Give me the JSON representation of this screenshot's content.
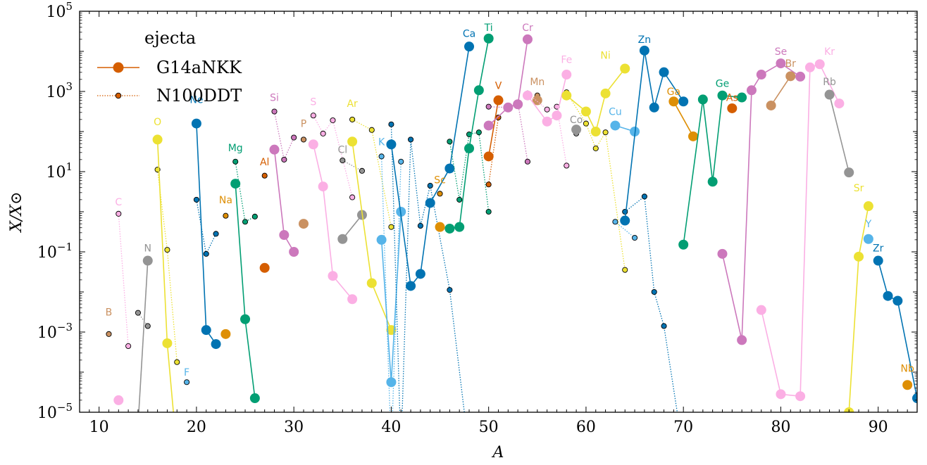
{
  "chart_data": {
    "type": "scatter",
    "xlabel": "A",
    "ylabel": "X/X⊙",
    "xlim": [
      8,
      94
    ],
    "ylim_log10": [
      -5,
      5
    ],
    "yscale": "log",
    "x_ticks": [
      10,
      20,
      30,
      40,
      50,
      60,
      70,
      80,
      90
    ],
    "y_ticks": [
      {
        "exp": -5,
        "base": "10",
        "sup": "−5"
      },
      {
        "exp": -3,
        "base": "10",
        "sup": "−3"
      },
      {
        "exp": -1,
        "base": "10",
        "sup": "−1"
      },
      {
        "exp": 1,
        "base": "10",
        "sup": "1"
      },
      {
        "exp": 3,
        "base": "10",
        "sup": "3"
      },
      {
        "exp": 5,
        "base": "10",
        "sup": "5"
      }
    ],
    "legend": {
      "title": "ejecta",
      "placement": "top-left",
      "entries": [
        {
          "label": "G14aNKK",
          "style": "solid-large"
        },
        {
          "label": "N100DDT",
          "style": "dotted-small"
        }
      ]
    },
    "elements": [
      {
        "symbol": "B",
        "color": "#ca9161",
        "label_at": [
          11,
          -2.5
        ],
        "N100DDT": [
          [
            11,
            -3.05
          ]
        ]
      },
      {
        "symbol": "C",
        "color": "#fbafe4",
        "label_at": [
          12,
          0.25
        ],
        "G14aNKK": [
          [
            12,
            -4.7
          ]
        ],
        "N100DDT": [
          [
            12,
            -0.05
          ],
          [
            13,
            -3.35
          ]
        ]
      },
      {
        "symbol": "N",
        "color": "#949494",
        "label_at": [
          15,
          -0.9
        ],
        "G14aNKK": [
          [
            14,
            -5.3
          ],
          [
            15,
            -1.22
          ]
        ],
        "N100DDT": [
          [
            14,
            -2.52
          ],
          [
            15,
            -2.85
          ]
        ]
      },
      {
        "symbol": "O",
        "color": "#ece133",
        "label_at": [
          16,
          2.25
        ],
        "G14aNKK": [
          [
            16,
            1.8
          ],
          [
            17,
            -3.28
          ],
          [
            18,
            -6.0
          ]
        ],
        "N100DDT": [
          [
            16,
            1.05
          ],
          [
            17,
            -0.95
          ],
          [
            18,
            -3.75
          ]
        ]
      },
      {
        "symbol": "F",
        "color": "#56b4e9",
        "label_at": [
          19,
          -4.0
        ],
        "N100DDT": [
          [
            19,
            -4.25
          ]
        ]
      },
      {
        "symbol": "Ne",
        "color": "#0173b2",
        "label_at": [
          20,
          2.8
        ],
        "G14aNKK": [
          [
            20,
            2.2
          ],
          [
            21,
            -2.95
          ],
          [
            22,
            -3.3
          ]
        ],
        "N100DDT": [
          [
            20,
            0.3
          ],
          [
            21,
            -1.05
          ],
          [
            22,
            -0.55
          ]
        ]
      },
      {
        "symbol": "Na",
        "color": "#de8f05",
        "label_at": [
          23,
          0.3
        ],
        "G14aNKK": [
          [
            23,
            -3.05
          ]
        ],
        "N100DDT": [
          [
            23,
            -0.1
          ]
        ]
      },
      {
        "symbol": "Mg",
        "color": "#029e73",
        "label_at": [
          24,
          1.6
        ],
        "G14aNKK": [
          [
            24,
            0.7
          ],
          [
            25,
            -2.68
          ],
          [
            26,
            -4.65
          ]
        ],
        "N100DDT": [
          [
            24,
            1.25
          ],
          [
            25,
            -0.25
          ],
          [
            26,
            -0.12
          ]
        ]
      },
      {
        "symbol": "Al",
        "color": "#d55e00",
        "label_at": [
          27,
          1.25
        ],
        "G14aNKK": [
          [
            27,
            -1.4
          ]
        ],
        "N100DDT": [
          [
            27,
            0.9
          ]
        ]
      },
      {
        "symbol": "Si",
        "color": "#cc78bc",
        "label_at": [
          28,
          2.85
        ],
        "G14aNKK": [
          [
            28,
            1.55
          ],
          [
            29,
            -0.58
          ],
          [
            30,
            -1.0
          ]
        ],
        "N100DDT": [
          [
            28,
            2.5
          ],
          [
            29,
            1.3
          ],
          [
            30,
            1.85
          ]
        ]
      },
      {
        "symbol": "P",
        "color": "#ca9161",
        "label_at": [
          31,
          2.2
        ],
        "G14aNKK": [
          [
            31,
            -0.3
          ]
        ],
        "N100DDT": [
          [
            31,
            1.8
          ]
        ]
      },
      {
        "symbol": "S",
        "color": "#fbafe4",
        "label_at": [
          32,
          2.75
        ],
        "G14aNKK": [
          [
            32,
            1.68
          ],
          [
            33,
            0.63
          ],
          [
            34,
            -1.6
          ],
          [
            36,
            -2.18
          ]
        ],
        "N100DDT": [
          [
            32,
            2.4
          ],
          [
            33,
            1.95
          ],
          [
            34,
            2.28
          ],
          [
            36,
            0.36
          ]
        ]
      },
      {
        "symbol": "Cl",
        "color": "#949494",
        "label_at": [
          35,
          1.55
        ],
        "G14aNKK": [
          [
            35,
            -0.68
          ],
          [
            37,
            -0.08
          ]
        ],
        "N100DDT": [
          [
            35,
            1.28
          ],
          [
            37,
            1.02
          ]
        ]
      },
      {
        "symbol": "Ar",
        "color": "#ece133",
        "label_at": [
          36,
          2.7
        ],
        "G14aNKK": [
          [
            36,
            1.75
          ],
          [
            38,
            -1.78
          ],
          [
            40,
            -2.95
          ]
        ],
        "N100DDT": [
          [
            36,
            2.3
          ],
          [
            38,
            2.04
          ],
          [
            40,
            -0.38
          ]
        ]
      },
      {
        "symbol": "K",
        "color": "#56b4e9",
        "label_at": [
          39,
          1.75
        ],
        "G14aNKK": [
          [
            39,
            -0.7
          ],
          [
            40,
            -4.25
          ],
          [
            41,
            0.0
          ]
        ],
        "N100DDT": [
          [
            39,
            1.38
          ],
          [
            40,
            -6.0
          ],
          [
            41,
            1.25
          ]
        ]
      },
      {
        "symbol": "Ca",
        "color": "#0173b2",
        "label_at": [
          48,
          4.45
        ],
        "G14aNKK": [
          [
            40,
            1.68
          ],
          [
            42,
            -1.85
          ],
          [
            43,
            -1.55
          ],
          [
            44,
            0.22
          ],
          [
            46,
            1.08
          ],
          [
            48,
            4.12
          ]
        ],
        "N100DDT": [
          [
            40,
            2.18
          ],
          [
            41,
            -6.0
          ],
          [
            42,
            1.8
          ],
          [
            43,
            -0.35
          ],
          [
            44,
            0.65
          ],
          [
            46,
            -1.95
          ],
          [
            48,
            -6.0
          ]
        ]
      },
      {
        "symbol": "Sc",
        "color": "#de8f05",
        "label_at": [
          45,
          0.8
        ],
        "G14aNKK": [
          [
            45,
            -0.38
          ]
        ],
        "N100DDT": [
          [
            45,
            0.45
          ]
        ]
      },
      {
        "symbol": "Ti",
        "color": "#029e73",
        "label_at": [
          50,
          4.6
        ],
        "G14aNKK": [
          [
            46,
            -0.42
          ],
          [
            47,
            -0.38
          ],
          [
            48,
            1.58
          ],
          [
            49,
            3.03
          ],
          [
            50,
            4.32
          ]
        ],
        "N100DDT": [
          [
            46,
            1.75
          ],
          [
            47,
            0.3
          ],
          [
            48,
            1.93
          ],
          [
            49,
            1.98
          ],
          [
            50,
            0.0
          ]
        ]
      },
      {
        "symbol": "V",
        "color": "#d55e00",
        "label_at": [
          51,
          3.15
        ],
        "G14aNKK": [
          [
            50,
            1.38
          ],
          [
            51,
            2.78
          ]
        ],
        "N100DDT": [
          [
            50,
            0.68
          ],
          [
            51,
            2.35
          ]
        ]
      },
      {
        "symbol": "Cr",
        "color": "#cc78bc",
        "label_at": [
          54,
          4.6
        ],
        "G14aNKK": [
          [
            50,
            2.15
          ],
          [
            52,
            2.6
          ],
          [
            53,
            2.68
          ],
          [
            54,
            4.3
          ]
        ],
        "N100DDT": [
          [
            50,
            2.62
          ],
          [
            52,
            2.6
          ],
          [
            53,
            2.72
          ],
          [
            54,
            1.25
          ]
        ]
      },
      {
        "symbol": "Mn",
        "color": "#ca9161",
        "label_at": [
          55,
          3.25
        ],
        "G14aNKK": [
          [
            55,
            2.78
          ]
        ],
        "N100DDT": [
          [
            55,
            2.9
          ]
        ]
      },
      {
        "symbol": "Fe",
        "color": "#fbafe4",
        "label_at": [
          58,
          3.8
        ],
        "G14aNKK": [
          [
            54,
            2.9
          ],
          [
            56,
            2.25
          ],
          [
            57,
            2.4
          ],
          [
            58,
            3.42
          ]
        ],
        "N100DDT": [
          [
            54,
            2.95
          ],
          [
            56,
            2.55
          ],
          [
            57,
            2.62
          ],
          [
            58,
            1.15
          ]
        ]
      },
      {
        "symbol": "Co",
        "color": "#949494",
        "label_at": [
          59,
          2.3
        ],
        "G14aNKK": [
          [
            59,
            2.05
          ]
        ],
        "N100DDT": [
          [
            59,
            1.95
          ]
        ]
      },
      {
        "symbol": "Ni",
        "color": "#ece133",
        "label_at": [
          62,
          3.9
        ],
        "G14aNKK": [
          [
            58,
            2.9
          ],
          [
            60,
            2.5
          ],
          [
            61,
            2.0
          ],
          [
            62,
            2.95
          ],
          [
            64,
            3.57
          ]
        ],
        "N100DDT": [
          [
            58,
            2.98
          ],
          [
            60,
            2.2
          ],
          [
            61,
            1.58
          ],
          [
            62,
            1.98
          ],
          [
            64,
            -1.45
          ]
        ]
      },
      {
        "symbol": "Cu",
        "color": "#56b4e9",
        "label_at": [
          63,
          2.5
        ],
        "G14aNKK": [
          [
            63,
            2.15
          ],
          [
            65,
            2.0
          ]
        ],
        "N100DDT": [
          [
            63,
            -0.25
          ],
          [
            65,
            -0.65
          ]
        ]
      },
      {
        "symbol": "Zn",
        "color": "#0173b2",
        "label_at": [
          66,
          4.3
        ],
        "G14aNKK": [
          [
            64,
            -0.22
          ],
          [
            66,
            4.02
          ],
          [
            67,
            2.6
          ],
          [
            68,
            3.48
          ],
          [
            70,
            2.75
          ]
        ],
        "N100DDT": [
          [
            64,
            0.0
          ],
          [
            66,
            0.38
          ],
          [
            67,
            -2.0
          ],
          [
            68,
            -2.85
          ],
          [
            70,
            -6.0
          ]
        ]
      },
      {
        "symbol": "Ga",
        "color": "#de8f05",
        "label_at": [
          69,
          3.0
        ],
        "G14aNKK": [
          [
            69,
            2.75
          ],
          [
            71,
            1.88
          ]
        ]
      },
      {
        "symbol": "Ge",
        "color": "#029e73",
        "label_at": [
          74,
          3.2
        ],
        "G14aNKK": [
          [
            70,
            -0.82
          ],
          [
            72,
            2.8
          ],
          [
            73,
            0.75
          ],
          [
            74,
            2.9
          ],
          [
            76,
            2.85
          ]
        ]
      },
      {
        "symbol": "As",
        "color": "#d55e00",
        "label_at": [
          75,
          2.85
        ],
        "G14aNKK": [
          [
            75,
            2.58
          ]
        ]
      },
      {
        "symbol": "Se",
        "color": "#cc78bc",
        "label_at": [
          80,
          4.0
        ],
        "G14aNKK": [
          [
            74,
            -1.05
          ],
          [
            76,
            -3.2
          ],
          [
            77,
            3.03
          ],
          [
            78,
            3.42
          ],
          [
            80,
            3.7
          ],
          [
            82,
            3.37
          ]
        ]
      },
      {
        "symbol": "Br",
        "color": "#ca9161",
        "label_at": [
          81,
          3.7
        ],
        "G14aNKK": [
          [
            79,
            2.65
          ],
          [
            81,
            3.38
          ]
        ]
      },
      {
        "symbol": "Kr",
        "color": "#fbafe4",
        "label_at": [
          85,
          4.0
        ],
        "G14aNKK": [
          [
            78,
            -2.45
          ],
          [
            80,
            -4.55
          ],
          [
            82,
            -4.6
          ],
          [
            83,
            3.6
          ],
          [
            84,
            3.68
          ],
          [
            86,
            2.7
          ]
        ]
      },
      {
        "symbol": "Rb",
        "color": "#949494",
        "label_at": [
          85,
          3.25
        ],
        "G14aNKK": [
          [
            85,
            2.92
          ],
          [
            87,
            0.98
          ]
        ]
      },
      {
        "symbol": "Sr",
        "color": "#ece133",
        "label_at": [
          88,
          0.6
        ],
        "G14aNKK": [
          [
            86,
            -6.0
          ],
          [
            87,
            -5.0
          ],
          [
            88,
            -1.12
          ],
          [
            89,
            0.14
          ]
        ]
      },
      {
        "symbol": "Y",
        "color": "#56b4e9",
        "label_at": [
          89,
          -0.3
        ],
        "G14aNKK": [
          [
            89,
            -0.68
          ]
        ]
      },
      {
        "symbol": "Zr",
        "color": "#0173b2",
        "label_at": [
          90,
          -0.9
        ],
        "G14aNKK": [
          [
            90,
            -1.22
          ],
          [
            91,
            -2.1
          ],
          [
            92,
            -2.22
          ],
          [
            94,
            -4.65
          ]
        ]
      },
      {
        "symbol": "Nb",
        "color": "#de8f05",
        "label_at": [
          93,
          -3.9
        ],
        "G14aNKK": [
          [
            93,
            -4.32
          ]
        ]
      }
    ]
  }
}
